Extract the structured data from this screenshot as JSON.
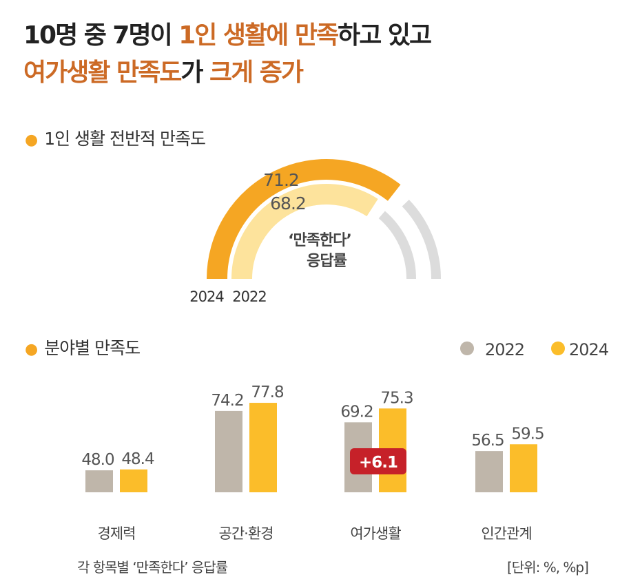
{
  "title": {
    "line1": [
      {
        "text": "10명 중 7명이 ",
        "hl": false
      },
      {
        "text": "1인 생활에 만족",
        "hl": true
      },
      {
        "text": "하고 있고",
        "hl": false
      }
    ],
    "line2": [
      {
        "text": "여가생활 만족도",
        "hl": true
      },
      {
        "text": "가 ",
        "hl": false
      },
      {
        "text": "크게 증가",
        "hl": true
      }
    ]
  },
  "colors": {
    "highlight": "#cc6a25",
    "gauge_2024": "#f5a623",
    "gauge_2022": "#fde39c",
    "gauge_rest": "#dcdcdc",
    "bar_2022": "#bfb6aa",
    "bar_2024": "#fbbd2a",
    "badge": "#c62129"
  },
  "chart_data": [
    {
      "type": "gauge",
      "title": "1인 생활 전반적 만족도",
      "center_label": [
        "‘만족한다’",
        "응답률"
      ],
      "max": 100,
      "series": [
        {
          "name": "2024",
          "value": 71.2
        },
        {
          "name": "2022",
          "value": 68.2
        }
      ]
    },
    {
      "type": "bar",
      "title": "분야별 만족도",
      "categories": [
        "경제력",
        "공간·환경",
        "여가생활",
        "인간관계"
      ],
      "series": [
        {
          "name": "2022",
          "values": [
            48.0,
            74.2,
            69.2,
            56.5
          ]
        },
        {
          "name": "2024",
          "values": [
            48.4,
            77.8,
            75.3,
            59.5
          ]
        }
      ],
      "annotation": {
        "category": "여가생활",
        "text": "+6.1"
      },
      "legend": "top-right",
      "footnote": "각 항목별 ‘만족한다’ 응답률",
      "unit": "[단위: %, %p]"
    }
  ]
}
